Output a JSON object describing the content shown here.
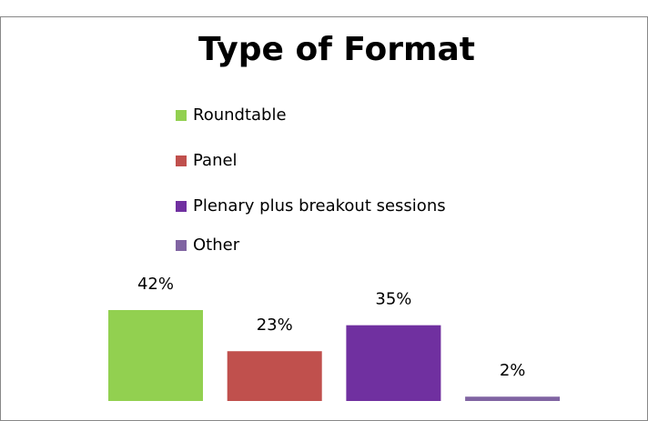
{
  "chart_data": {
    "type": "bar",
    "title": "Type of Format",
    "categories": [
      "Roundtable",
      "Panel",
      "Plenary plus breakout sessions",
      "Other"
    ],
    "values": [
      42,
      23,
      35,
      2
    ],
    "value_labels": [
      "42%",
      "23%",
      "35%",
      "2%"
    ],
    "colors": [
      "#92d050",
      "#c0504d",
      "#7030a0",
      "#8064a2"
    ],
    "legend": "top"
  }
}
